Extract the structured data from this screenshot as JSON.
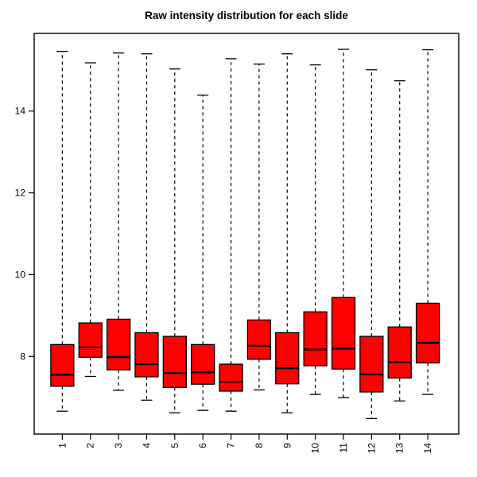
{
  "chart_data": {
    "type": "boxplot",
    "title": "Raw intensity distribution for each slide",
    "xlabel": "",
    "ylabel": "",
    "grid": false,
    "legend": null,
    "categories": [
      "1",
      "2",
      "3",
      "4",
      "5",
      "6",
      "7",
      "8",
      "9",
      "10",
      "11",
      "12",
      "13",
      "14"
    ],
    "x_tick_label_rotation": -90,
    "yticks": [
      8,
      10,
      12,
      14
    ],
    "ylim": [
      6.1,
      15.9
    ],
    "xlim": [
      0,
      15.1
    ],
    "box_fill": "#FF0000",
    "box_border": "#000000",
    "whisker_style": "dashed",
    "series": [
      {
        "slide": "1",
        "whisker_low": 6.66,
        "q1": 7.27,
        "median": 7.55,
        "q3": 8.29,
        "whisker_high": 15.46
      },
      {
        "slide": "2",
        "whisker_low": 7.51,
        "q1": 7.98,
        "median": 8.22,
        "q3": 8.82,
        "whisker_high": 15.18
      },
      {
        "slide": "3",
        "whisker_low": 7.17,
        "q1": 7.67,
        "median": 7.98,
        "q3": 8.91,
        "whisker_high": 15.42
      },
      {
        "slide": "4",
        "whisker_low": 6.93,
        "q1": 7.5,
        "median": 7.81,
        "q3": 8.58,
        "whisker_high": 15.4
      },
      {
        "slide": "5",
        "whisker_low": 6.62,
        "q1": 7.24,
        "median": 7.59,
        "q3": 8.49,
        "whisker_high": 15.03
      },
      {
        "slide": "6",
        "whisker_low": 6.68,
        "q1": 7.32,
        "median": 7.61,
        "q3": 8.29,
        "whisker_high": 14.39
      },
      {
        "slide": "7",
        "whisker_low": 6.66,
        "q1": 7.15,
        "median": 7.38,
        "q3": 7.81,
        "whisker_high": 15.28
      },
      {
        "slide": "8",
        "whisker_low": 7.18,
        "q1": 7.93,
        "median": 8.26,
        "q3": 8.89,
        "whisker_high": 15.15
      },
      {
        "slide": "9",
        "whisker_low": 6.62,
        "q1": 7.33,
        "median": 7.71,
        "q3": 8.58,
        "whisker_high": 15.4
      },
      {
        "slide": "10",
        "whisker_low": 7.07,
        "q1": 7.77,
        "median": 8.17,
        "q3": 9.09,
        "whisker_high": 15.13
      },
      {
        "slide": "11",
        "whisker_low": 6.99,
        "q1": 7.69,
        "median": 8.19,
        "q3": 9.44,
        "whisker_high": 15.51
      },
      {
        "slide": "12",
        "whisker_low": 6.48,
        "q1": 7.13,
        "median": 7.56,
        "q3": 8.49,
        "whisker_high": 15.01
      },
      {
        "slide": "13",
        "whisker_low": 6.91,
        "q1": 7.47,
        "median": 7.86,
        "q3": 8.72,
        "whisker_high": 14.74
      },
      {
        "slide": "14",
        "whisker_low": 7.07,
        "q1": 7.84,
        "median": 8.33,
        "q3": 9.3,
        "whisker_high": 15.5
      }
    ]
  }
}
